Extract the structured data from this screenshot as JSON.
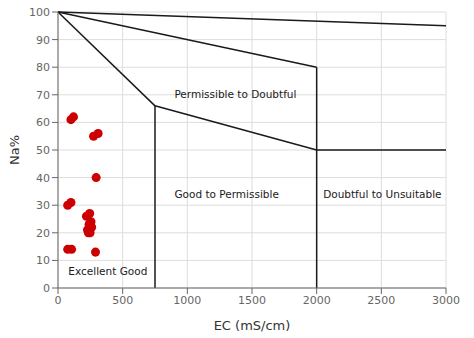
{
  "chart_data": {
    "type": "scatter",
    "xlabel": "EC (mS/cm)",
    "ylabel": "Na%",
    "xlim": [
      0,
      3000
    ],
    "ylim": [
      0,
      100
    ],
    "xticks": [
      0,
      500,
      1000,
      1500,
      2000,
      2500,
      3000
    ],
    "yticks": [
      0,
      10,
      20,
      30,
      40,
      50,
      60,
      70,
      80,
      90,
      100
    ],
    "x": [
      100,
      120,
      75,
      100,
      75,
      105,
      275,
      310,
      295,
      220,
      245,
      255,
      260,
      240,
      228,
      235,
      248,
      290
    ],
    "values": [
      61,
      62,
      30,
      31,
      14,
      14,
      55,
      56,
      40,
      26,
      27,
      24,
      22,
      23,
      21,
      20,
      20,
      13
    ],
    "color": "#cc0000",
    "lines": [
      {
        "x": [
          0,
          750
        ],
        "y": [
          100,
          66
        ],
        "color": "#1a1a1a"
      },
      {
        "x": [
          0,
          3000
        ],
        "y": [
          100,
          95
        ],
        "color": "#1a1a1a"
      },
      {
        "x": [
          0,
          2000
        ],
        "y": [
          100,
          80
        ],
        "color": "#1a1a1a"
      },
      {
        "x": [
          750,
          2000
        ],
        "y": [
          66,
          50
        ],
        "color": "#1a1a1a"
      },
      {
        "x": [
          2000,
          3000
        ],
        "y": [
          50,
          50
        ],
        "color": "#1a1a1a"
      },
      {
        "x": [
          750,
          750
        ],
        "y": [
          0,
          66
        ],
        "color": "#1a1a1a"
      },
      {
        "x": [
          2000,
          2000
        ],
        "y": [
          0,
          80
        ],
        "color": "#1a1a1a"
      }
    ],
    "annotations": [
      {
        "text": "Excellent Good",
        "x": 80,
        "y": 6
      },
      {
        "text": "Good to Permissible",
        "x": 900,
        "y": 34
      },
      {
        "text": "Permissible to Doubtful",
        "x": 900,
        "y": 70
      },
      {
        "text": "Doubtful to Unsuitable",
        "x": 2050,
        "y": 34
      }
    ],
    "grid": true
  }
}
